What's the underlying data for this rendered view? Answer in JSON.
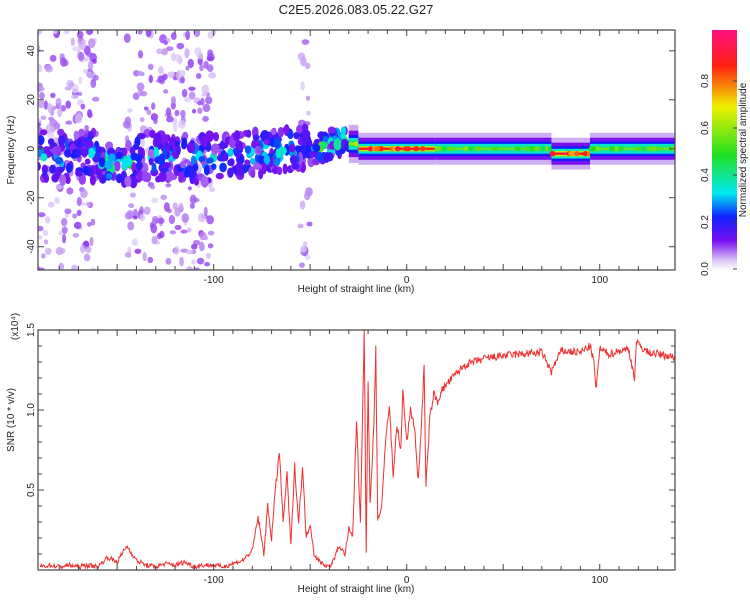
{
  "chart_data": [
    {
      "type": "heatmap",
      "title": "C2E5.2026.083.05.22.G27",
      "xlabel": "Height of straight line (km)",
      "ylabel": "Frequency (Hz)",
      "xlim": [
        -191,
        139
      ],
      "ylim": [
        -49.5,
        48.5
      ],
      "xticks": [
        -100,
        0,
        100
      ],
      "yticks": [
        -40,
        -20,
        0,
        20,
        40
      ],
      "colorbar": {
        "label": "Normalized spectral amplitude",
        "range": [
          0,
          1
        ],
        "ticks": [
          "0.0",
          "0.2",
          "0.4",
          "0.6",
          "0.8"
        ]
      },
      "ridge": [
        {
          "x": [
            -191,
            -160
          ],
          "freq": [
            -3,
            -3
          ],
          "amp": 0.3,
          "spread_hz": 9,
          "style": "blobs"
        },
        {
          "x": [
            -160,
            -140
          ],
          "freq": [
            -6,
            -6
          ],
          "amp": 0.45,
          "spread_hz": 7,
          "style": "blobs"
        },
        {
          "x": [
            -140,
            -100
          ],
          "freq": [
            -3,
            -4
          ],
          "amp": 0.3,
          "spread_hz": 9,
          "style": "blobs"
        },
        {
          "x": [
            -100,
            -52
          ],
          "freq": [
            -4,
            1
          ],
          "amp": 0.35,
          "spread_hz": 8,
          "style": "blobs"
        },
        {
          "x": [
            -52,
            -30
          ],
          "freq": [
            -2,
            5
          ],
          "amp": 0.5,
          "spread_hz": 5,
          "style": "blobs"
        },
        {
          "x": [
            -30,
            -25
          ],
          "freq": [
            2,
            0
          ],
          "amp": 0.6,
          "spread_hz": 3,
          "style": "band"
        },
        {
          "x": [
            -25,
            15
          ],
          "freq": [
            0,
            0
          ],
          "amp": 0.88,
          "spread_hz": 2.5,
          "style": "band"
        },
        {
          "x": [
            15,
            75
          ],
          "freq": [
            0,
            0
          ],
          "amp": 0.55,
          "spread_hz": 2.5,
          "style": "band"
        },
        {
          "x": [
            75,
            95
          ],
          "freq": [
            -2,
            -2
          ],
          "amp": 0.9,
          "spread_hz": 2.5,
          "style": "band"
        },
        {
          "x": [
            95,
            139
          ],
          "freq": [
            0,
            0
          ],
          "amp": 0.55,
          "spread_hz": 2.5,
          "style": "band"
        }
      ],
      "noise_regions": [
        {
          "x": [
            -191,
            -160
          ],
          "density": 160
        },
        {
          "x": [
            -145,
            -100
          ],
          "density": 220
        },
        {
          "x": [
            -55,
            -50
          ],
          "density": 25
        }
      ]
    },
    {
      "type": "line",
      "xlabel": "Height of straight line (km)",
      "ylabel": "SNR (10 * v/v)",
      "y_multiplier": "(x10⁴)",
      "xlim": [
        -191,
        139
      ],
      "ylim": [
        0,
        1.5
      ],
      "xticks": [
        -100,
        0,
        100
      ],
      "yticks": [
        0.5,
        1.0,
        1.5
      ],
      "ytick_labels": [
        "0.5",
        "1.0",
        "1.5"
      ],
      "color": "#f03030",
      "x": [
        -190,
        -185,
        -180,
        -175,
        -170,
        -165,
        -160,
        -155,
        -150,
        -145,
        -140,
        -135,
        -130,
        -125,
        -120,
        -115,
        -110,
        -105,
        -100,
        -95,
        -90,
        -85,
        -80,
        -77,
        -74,
        -72,
        -70,
        -68,
        -66,
        -64,
        -62,
        -60,
        -58,
        -56,
        -54,
        -52,
        -50,
        -48,
        -45,
        -42,
        -40,
        -38,
        -35,
        -32,
        -30,
        -28,
        -26,
        -24,
        -22,
        -21,
        -20,
        -19,
        -17,
        -16,
        -15,
        -13,
        -11,
        -9,
        -7,
        -5,
        -3,
        -2,
        0,
        2,
        4,
        6,
        8,
        9,
        10,
        12,
        14,
        16,
        18,
        20,
        25,
        30,
        35,
        40,
        50,
        60,
        70,
        75,
        80,
        90,
        95,
        97,
        98,
        100,
        105,
        110,
        115,
        118,
        119,
        125,
        130,
        139
      ],
      "y": [
        0.02,
        0.03,
        0.02,
        0.03,
        0.02,
        0.03,
        0.02,
        0.08,
        0.05,
        0.15,
        0.06,
        0.03,
        0.02,
        0.04,
        0.03,
        0.05,
        0.02,
        0.03,
        0.03,
        0.02,
        0.04,
        0.06,
        0.12,
        0.33,
        0.1,
        0.4,
        0.2,
        0.5,
        0.74,
        0.3,
        0.6,
        0.15,
        0.65,
        0.3,
        0.64,
        0.2,
        0.3,
        0.1,
        0.05,
        0.03,
        0.02,
        0.06,
        0.15,
        0.1,
        0.25,
        0.2,
        0.94,
        0.3,
        1.5,
        0.1,
        1.2,
        0.4,
        0.9,
        1.38,
        0.3,
        0.4,
        0.8,
        1.03,
        0.6,
        0.9,
        0.75,
        1.12,
        0.8,
        1.0,
        0.9,
        0.55,
        1.0,
        1.27,
        0.52,
        0.95,
        1.1,
        1.05,
        1.12,
        1.15,
        1.22,
        1.28,
        1.3,
        1.32,
        1.34,
        1.35,
        1.36,
        1.24,
        1.37,
        1.36,
        1.4,
        1.3,
        1.12,
        1.38,
        1.35,
        1.37,
        1.38,
        1.2,
        1.42,
        1.36,
        1.35,
        1.33
      ]
    }
  ]
}
